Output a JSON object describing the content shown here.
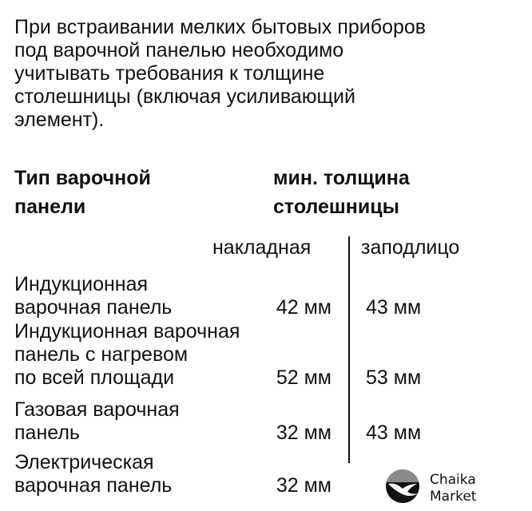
{
  "intro": [
    "При встраивании мелких бытовых приборов",
    "под варочной панелью необходимо",
    "учитывать требования к толщине",
    "столешницы (включая усиливающий",
    "элемент)."
  ],
  "headings": {
    "type": [
      "Тип варочной",
      "панели"
    ],
    "thickness": [
      "мин. толщина",
      "столешницы"
    ]
  },
  "columns": {
    "overlay": "накладная",
    "flush": "заподлицо"
  },
  "rows": [
    {
      "name": [
        "Индукционная",
        "варочная панель"
      ],
      "overlay": "42 мм",
      "flush": "43 мм"
    },
    {
      "name": [
        "Индукционная варочная",
        "панель с нагревом",
        "по всей площади"
      ],
      "overlay": "52 мм",
      "flush": "53 мм"
    },
    {
      "name": [
        "Газовая варочная",
        "панель"
      ],
      "overlay": "32 мм",
      "flush": "43 мм"
    },
    {
      "name": [
        "Электрическая",
        "варочная панель"
      ],
      "overlay": "32 мм",
      "flush": ""
    }
  ],
  "logo": {
    "text": [
      "Chaika",
      "Market"
    ],
    "icon": "seagull-icon"
  }
}
